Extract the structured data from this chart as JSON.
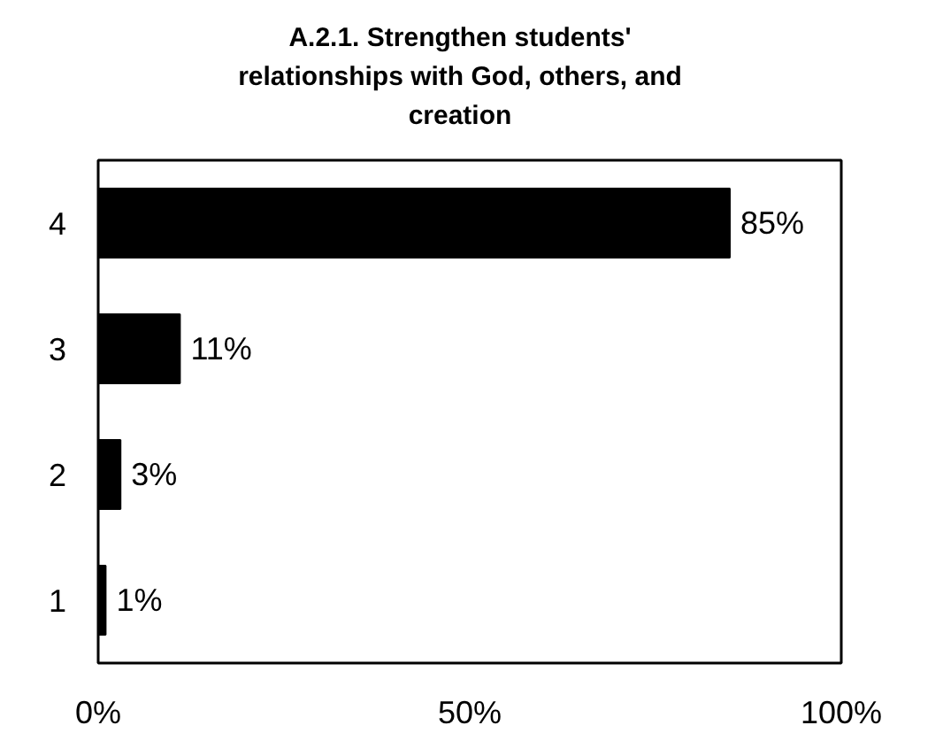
{
  "chart_data": {
    "type": "bar",
    "orientation": "horizontal",
    "title": "A.2.1. Strengthen students' relationships with God, others, and creation",
    "categories": [
      "4",
      "3",
      "2",
      "1"
    ],
    "values": [
      85,
      11,
      3,
      1
    ],
    "color": "#000000",
    "value_labels": [
      "85%",
      "11%",
      "3%",
      "1%"
    ],
    "xlim": [
      0,
      100
    ],
    "xticks": [
      {
        "value": 0,
        "label": "0%"
      },
      {
        "value": 50,
        "label": "50%"
      },
      {
        "value": 100,
        "label": "100%"
      }
    ],
    "grid": false
  }
}
